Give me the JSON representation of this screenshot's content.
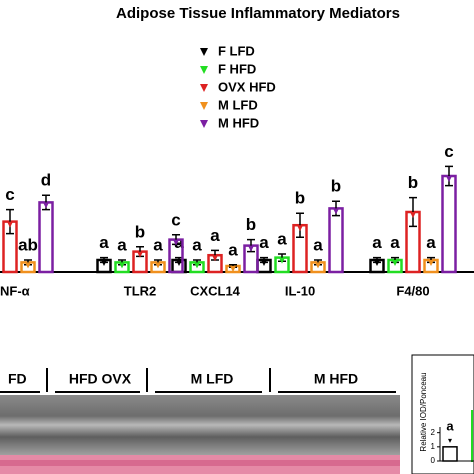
{
  "chart_data": [
    {
      "type": "bar",
      "title": "Adipose Tissue Inflammatory Mediators",
      "categories": [
        "NF-α",
        "TLR2",
        "CXCL14",
        "IL-10",
        "F4/80"
      ],
      "ylim": [
        0,
        10
      ],
      "series": [
        {
          "name": "F LFD",
          "color": "#000000",
          "values": [
            null,
            1.0,
            1.0,
            1.0,
            1.0
          ],
          "errors": [
            null,
            0.2,
            0.2,
            0.2,
            0.2
          ],
          "letters": [
            null,
            "a",
            "a",
            "a",
            "a"
          ]
        },
        {
          "name": "F HFD",
          "color": "#22dd22",
          "values": [
            null,
            0.8,
            0.8,
            1.2,
            1.0
          ],
          "errors": [
            null,
            0.2,
            0.2,
            0.3,
            0.2
          ],
          "letters": [
            null,
            "a",
            "a",
            "a",
            "a"
          ]
        },
        {
          "name": "OVX HFD",
          "color": "#dd2222",
          "values": [
            4.2,
            1.7,
            1.4,
            3.9,
            5.0
          ],
          "errors": [
            1.0,
            0.4,
            0.4,
            1.0,
            1.2
          ],
          "letters": [
            "c",
            "b",
            "a",
            "b",
            "b"
          ]
        },
        {
          "name": "M LFD",
          "color": "#f0901e",
          "values": [
            0.8,
            0.8,
            0.5,
            0.8,
            1.0
          ],
          "errors": [
            0.2,
            0.2,
            0.1,
            0.2,
            0.2
          ],
          "letters": [
            "ab",
            "a",
            "a",
            "a",
            "a"
          ]
        },
        {
          "name": "M HFD",
          "color": "#7b1fa2",
          "values": [
            5.8,
            2.7,
            2.2,
            5.3,
            8.0
          ],
          "errors": [
            0.6,
            0.4,
            0.5,
            0.6,
            0.8
          ],
          "letters": [
            "d",
            "c",
            "b",
            "b",
            "c"
          ]
        }
      ]
    },
    {
      "type": "bar",
      "ylabel": "Relative IOD/Ponceau",
      "values": [
        1.0
      ],
      "color": "#000000",
      "letters": [
        "a"
      ],
      "ylim": [
        0,
        2.4
      ],
      "yticks": [
        0,
        1,
        2
      ]
    }
  ],
  "blot": {
    "lanes": [
      "FD",
      "HFD OVX",
      "M LFD",
      "M HFD"
    ]
  }
}
